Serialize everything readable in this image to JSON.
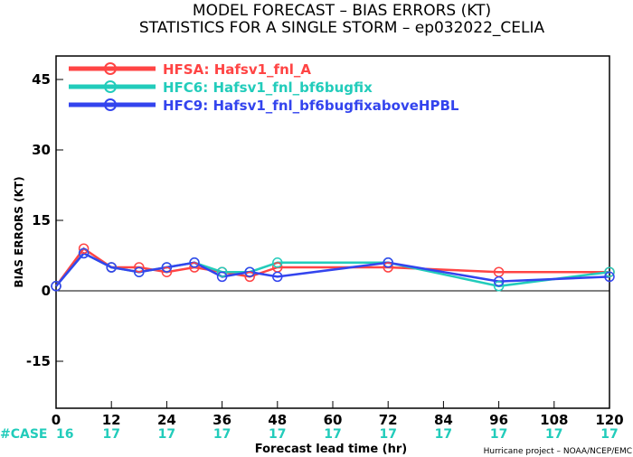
{
  "titles": {
    "line1": "MODEL FORECAST – BIAS ERRORS (KT)",
    "line2": "STATISTICS FOR A SINGLE STORM – ep032022_CELIA"
  },
  "credit": "Hurricane project – NOAA/NCEP/EMC",
  "chart_data": {
    "type": "line",
    "ylabel": "BIAS ERRORS (KT)",
    "xlabel": "Forecast lead time (hr)",
    "xlim": [
      0,
      120
    ],
    "ylim": [
      -25,
      50
    ],
    "x_ticks": [
      0,
      12,
      24,
      36,
      48,
      60,
      72,
      84,
      96,
      108,
      120
    ],
    "y_ticks": [
      -15,
      0,
      15,
      30,
      45
    ],
    "grid": false,
    "legend_position": "top-left",
    "case_label": "#CASE",
    "case_counts": {
      "x": [
        0,
        12,
        24,
        36,
        48,
        60,
        72,
        84,
        96,
        108,
        120
      ],
      "values": [
        16,
        17,
        17,
        17,
        17,
        17,
        17,
        17,
        17,
        17,
        17
      ]
    },
    "series": [
      {
        "name": "HFSA: Hafsv1_fnl_A",
        "color": "#ff4444",
        "x": [
          0,
          6,
          12,
          18,
          24,
          30,
          36,
          42,
          48,
          72,
          96,
          120
        ],
        "y": [
          1,
          9,
          5,
          5,
          4,
          5,
          4,
          3,
          5,
          5,
          4,
          4
        ]
      },
      {
        "name": "HFC6: Hafsv1_fnl_bf6bugfix",
        "color": "#22ccbb",
        "x": [
          0,
          6,
          12,
          18,
          24,
          30,
          36,
          42,
          48,
          72,
          96,
          120
        ],
        "y": [
          1,
          8,
          5,
          4,
          5,
          6,
          4,
          4,
          6,
          6,
          1,
          4
        ]
      },
      {
        "name": "HFC9: Hafsv1_fnl_bf6bugfixaboveHPBL",
        "color": "#3344ee",
        "x": [
          0,
          6,
          12,
          18,
          24,
          30,
          36,
          42,
          48,
          72,
          96,
          120
        ],
        "y": [
          1,
          8,
          5,
          4,
          5,
          6,
          3,
          4,
          3,
          6,
          2,
          3
        ]
      }
    ]
  }
}
